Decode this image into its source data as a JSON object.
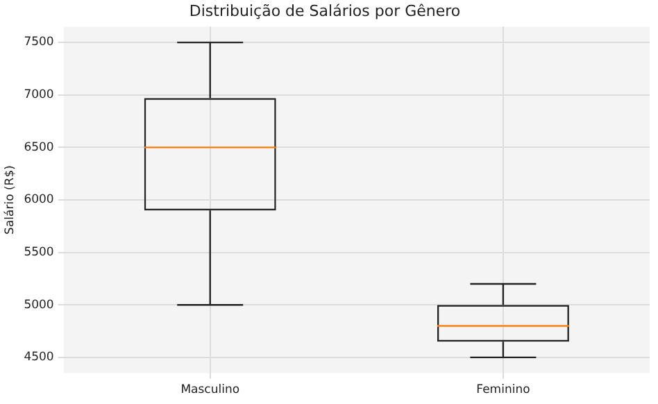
{
  "chart_data": {
    "type": "box",
    "title": "Distribuição de Salários por Gênero",
    "ylabel": "Salário (R$)",
    "categories": [
      "Masculino",
      "Feminino"
    ],
    "boxes": [
      {
        "low": 5000,
        "q1": 5900,
        "median": 6500,
        "q3": 6970,
        "high": 7500
      },
      {
        "low": 4500,
        "q1": 4650,
        "median": 4800,
        "q3": 5000,
        "high": 5200
      }
    ],
    "ylim": [
      4350,
      7650
    ],
    "yticks": [
      4500,
      5000,
      5500,
      6000,
      6500,
      7000,
      7500
    ],
    "grid": true
  }
}
